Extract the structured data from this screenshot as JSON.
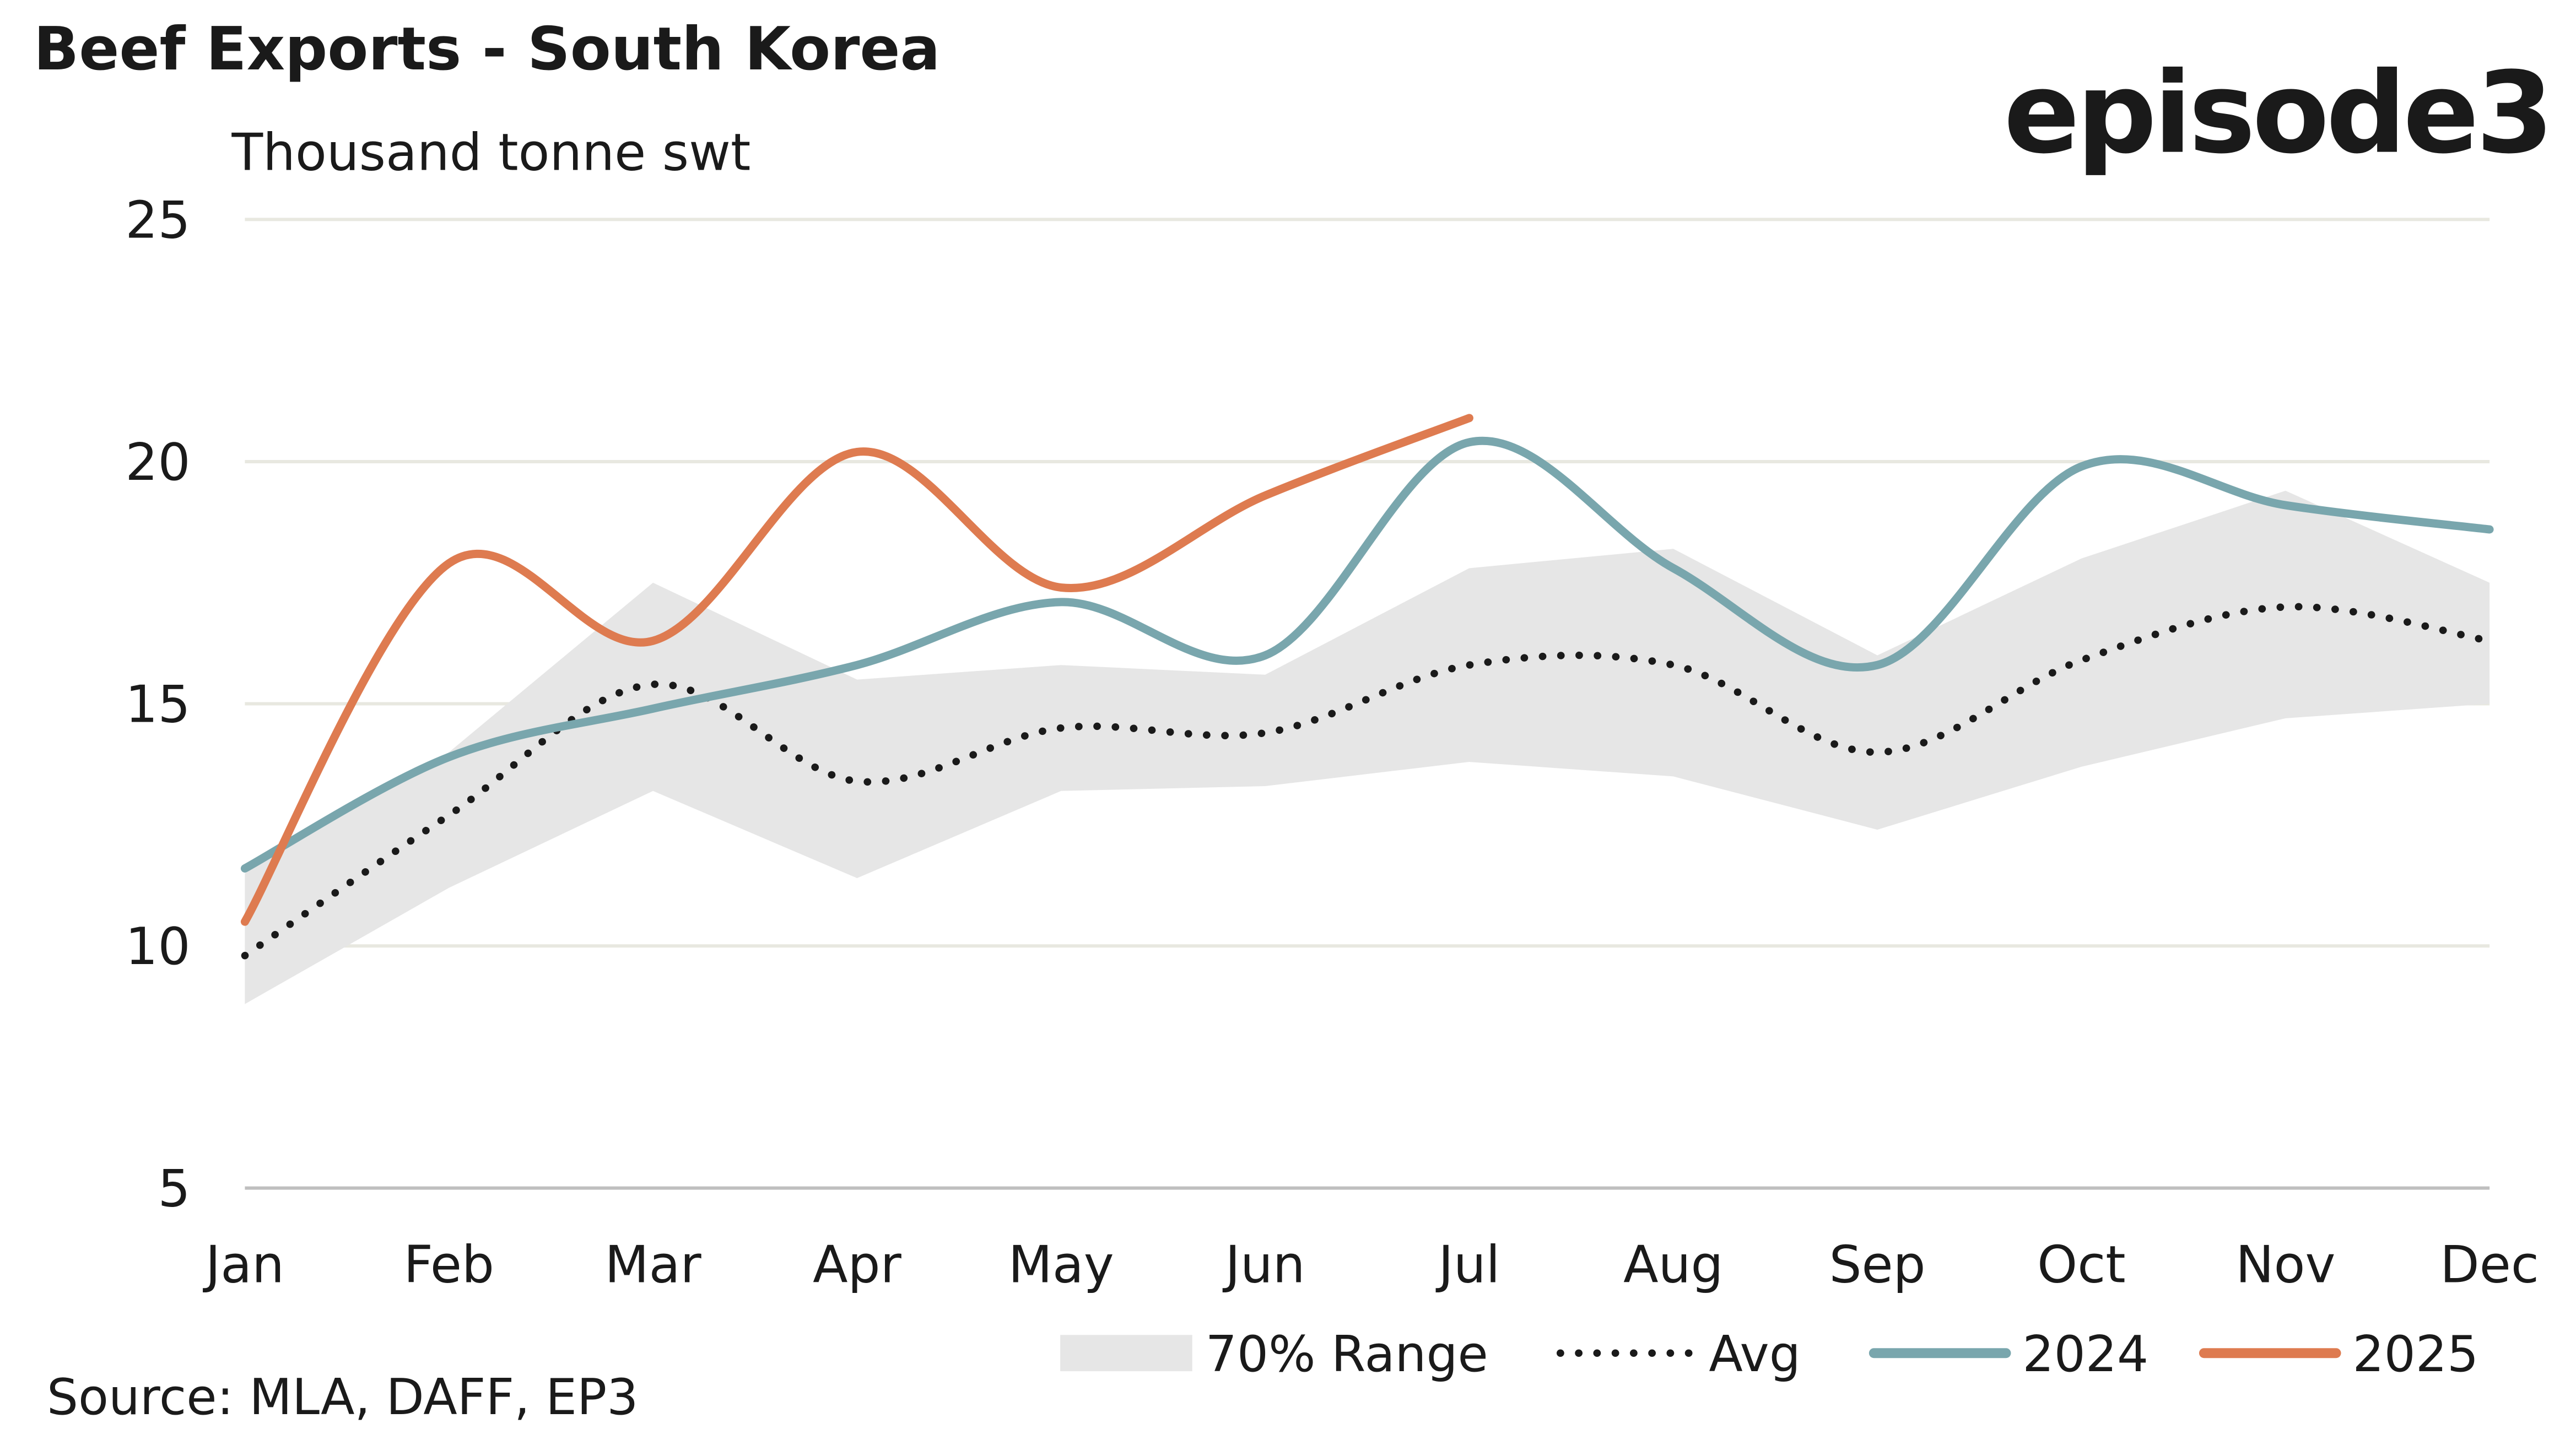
{
  "chart_data": {
    "type": "line",
    "title": "Beef Exports - South Korea",
    "subtitle": "Thousand tonne swt",
    "logo": "episode3",
    "source": "Source: MLA, DAFF, EP3",
    "categories": [
      "Jan",
      "Feb",
      "Mar",
      "Apr",
      "May",
      "Jun",
      "Jul",
      "Aug",
      "Sep",
      "Oct",
      "Nov",
      "Dec"
    ],
    "ylim": [
      5,
      25
    ],
    "yticks": [
      5,
      10,
      15,
      20,
      25
    ],
    "grid": true,
    "legend": "bottom",
    "range": {
      "name": "70% Range",
      "color": "#e6e6e6",
      "low": [
        8.8,
        11.2,
        13.2,
        11.4,
        13.2,
        13.3,
        13.8,
        13.5,
        12.4,
        13.7,
        14.7,
        15.0
      ],
      "high": [
        11.5,
        14.0,
        17.5,
        15.5,
        15.8,
        15.6,
        17.8,
        18.2,
        16.0,
        18.0,
        19.4,
        17.5
      ]
    },
    "series": [
      {
        "name": "Avg",
        "color": "#1a1a1a",
        "style": "dotted",
        "values": [
          9.8,
          12.7,
          15.4,
          13.4,
          14.5,
          14.4,
          15.8,
          15.8,
          14.0,
          15.9,
          17.0,
          16.3
        ]
      },
      {
        "name": "2024",
        "color": "#79a6ad",
        "style": "solid",
        "values": [
          11.6,
          13.9,
          14.9,
          15.8,
          17.1,
          16.0,
          20.4,
          17.8,
          15.8,
          19.9,
          19.1,
          18.6
        ]
      },
      {
        "name": "2025",
        "color": "#de7b50",
        "style": "solid",
        "values": [
          10.5,
          17.9,
          16.3,
          20.2,
          17.4,
          19.3,
          20.9,
          null,
          null,
          null,
          null,
          null
        ]
      }
    ]
  }
}
